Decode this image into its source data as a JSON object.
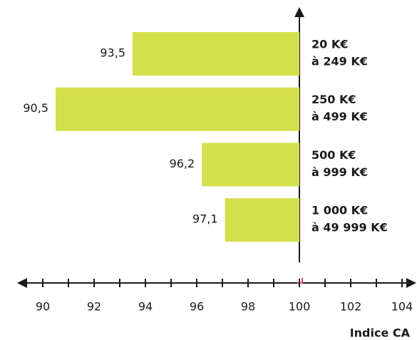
{
  "chart_data": {
    "type": "bar",
    "orientation": "horizontal",
    "base": 100,
    "categories": [
      [
        "20 K€",
        "à 249 K€"
      ],
      [
        "250 K€",
        "à 499 K€"
      ],
      [
        "500 K€",
        "à 999 K€"
      ],
      [
        "1 000 K€",
        "à 49 999 K€"
      ]
    ],
    "values": [
      93.5,
      90.5,
      96.2,
      97.1
    ],
    "value_labels": [
      "93,5",
      "90,5",
      "96,2",
      "97,1"
    ],
    "color": "#d4df4c",
    "xlim": [
      90,
      104
    ],
    "xticks": [
      90,
      92,
      94,
      96,
      98,
      100,
      102,
      104
    ],
    "xticks_minor": [
      91,
      93,
      95,
      97,
      99,
      101,
      103
    ],
    "xlabel": "Indice CA"
  }
}
